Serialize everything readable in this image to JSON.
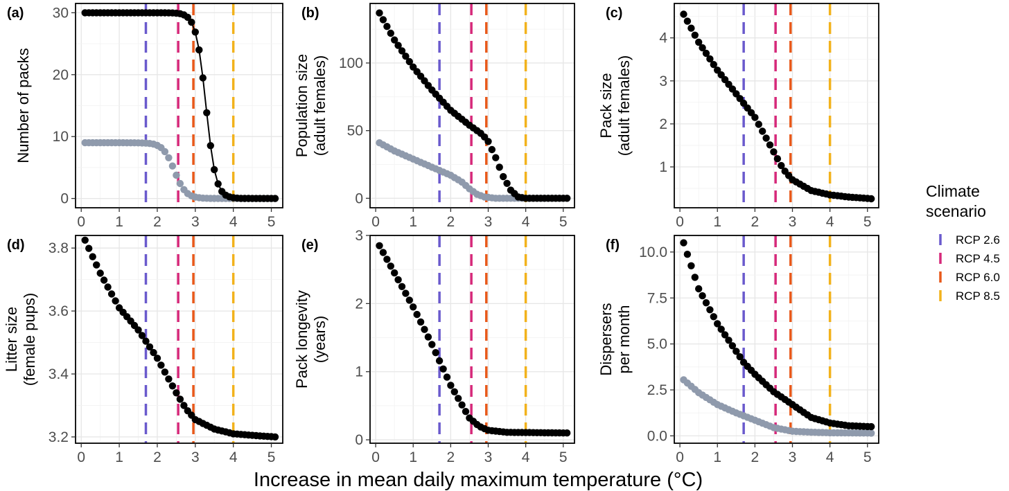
{
  "figure": {
    "xlabel": "Increase in mean daily maximum temperature (°C)"
  },
  "legend": {
    "title_lines": [
      "Climate",
      "scenario"
    ],
    "entries": [
      {
        "label": "RCP 2.6",
        "color": "#6a5acd",
        "x": 1.7
      },
      {
        "label": "RCP 4.5",
        "color": "#d6297a",
        "x": 2.55
      },
      {
        "label": "RCP 6.0",
        "color": "#e8591a",
        "x": 2.95
      },
      {
        "label": "RCP 8.5",
        "color": "#f2b21c",
        "x": 4.0
      }
    ]
  },
  "colors": {
    "black_series": "#000000",
    "grey_series": "#8f9aac",
    "grid": "#ebebeb"
  },
  "chart_data": [
    {
      "panel": "(a)",
      "type": "line",
      "ylabel_lines": [
        "Number of packs"
      ],
      "xlim": [
        -0.15,
        5.3
      ],
      "ylim": [
        -1.5,
        31.5
      ],
      "xticks": [
        0,
        1,
        2,
        3,
        4,
        5
      ],
      "yticks": [
        0,
        10,
        20,
        30
      ],
      "ytick_labels": [
        "0",
        "10",
        "20",
        "30"
      ],
      "series": [
        {
          "color": "black",
          "line": true,
          "kind": "logistic",
          "x0": 3.28,
          "s": 0.13,
          "hi": 30,
          "lo": 0
        },
        {
          "color": "grey",
          "line": false,
          "kind": "logistic",
          "x0": 2.45,
          "s": 0.15,
          "hi": 9,
          "lo": 0
        }
      ]
    },
    {
      "panel": "(b)",
      "type": "line",
      "ylabel_lines": [
        "Population size",
        "(adult females)"
      ],
      "xlim": [
        -0.15,
        5.3
      ],
      "ylim": [
        -7,
        144
      ],
      "xticks": [
        0,
        1,
        2,
        3,
        4,
        5
      ],
      "yticks": [
        0,
        50,
        100
      ],
      "ytick_labels": [
        "0",
        "50",
        "100"
      ],
      "series": [
        {
          "color": "black",
          "line": false,
          "kind": "knots",
          "knots": [
            [
              0.1,
              137
            ],
            [
              0.5,
              117
            ],
            [
              1,
              97
            ],
            [
              1.5,
              80
            ],
            [
              1.7,
              74
            ],
            [
              2,
              65
            ],
            [
              2.5,
              54
            ],
            [
              2.85,
              47
            ],
            [
              3,
              42
            ],
            [
              3.2,
              30
            ],
            [
              3.4,
              16
            ],
            [
              3.6,
              6
            ],
            [
              3.8,
              1
            ],
            [
              4,
              0
            ],
            [
              5.1,
              0
            ]
          ]
        },
        {
          "color": "grey",
          "line": false,
          "kind": "knots",
          "knots": [
            [
              0.1,
              41
            ],
            [
              0.5,
              35
            ],
            [
              1,
              29
            ],
            [
              1.5,
              23
            ],
            [
              2,
              17
            ],
            [
              2.3,
              12
            ],
            [
              2.5,
              7
            ],
            [
              2.7,
              3
            ],
            [
              2.9,
              1
            ],
            [
              3.2,
              0
            ],
            [
              5.1,
              0
            ]
          ]
        }
      ]
    },
    {
      "panel": "(c)",
      "type": "line",
      "ylabel_lines": [
        "Pack size",
        "(adult females)"
      ],
      "xlim": [
        -0.15,
        5.3
      ],
      "ylim": [
        0.05,
        4.8
      ],
      "xticks": [
        0,
        1,
        2,
        3,
        4,
        5
      ],
      "yticks": [
        1,
        2,
        3,
        4
      ],
      "ytick_labels": [
        "1",
        "2",
        "3",
        "4"
      ],
      "series": [
        {
          "color": "black",
          "line": false,
          "kind": "knots",
          "knots": [
            [
              0.1,
              4.55
            ],
            [
              0.5,
              3.9
            ],
            [
              1,
              3.25
            ],
            [
              1.5,
              2.7
            ],
            [
              2,
              2.15
            ],
            [
              2.5,
              1.35
            ],
            [
              2.75,
              0.95
            ],
            [
              3,
              0.7
            ],
            [
              3.5,
              0.45
            ],
            [
              4,
              0.35
            ],
            [
              4.5,
              0.3
            ],
            [
              5.1,
              0.26
            ]
          ]
        }
      ]
    },
    {
      "panel": "(d)",
      "type": "line",
      "ylabel_lines": [
        "Litter size",
        "(female pups)"
      ],
      "xlim": [
        -0.15,
        5.3
      ],
      "ylim": [
        3.18,
        3.84
      ],
      "xticks": [
        0,
        1,
        2,
        3,
        4,
        5
      ],
      "yticks": [
        3.2,
        3.4,
        3.6,
        3.8
      ],
      "ytick_labels": [
        "3.2",
        "3.4",
        "3.6",
        "3.8"
      ],
      "series": [
        {
          "color": "black",
          "line": false,
          "kind": "knots",
          "knots": [
            [
              0.1,
              3.825
            ],
            [
              0.5,
              3.72
            ],
            [
              1,
              3.61
            ],
            [
              1.5,
              3.54
            ],
            [
              2,
              3.45
            ],
            [
              2.5,
              3.34
            ],
            [
              2.75,
              3.29
            ],
            [
              3,
              3.255
            ],
            [
              3.5,
              3.225
            ],
            [
              4,
              3.21
            ],
            [
              4.5,
              3.205
            ],
            [
              5.1,
              3.2
            ]
          ]
        }
      ]
    },
    {
      "panel": "(e)",
      "type": "line",
      "ylabel_lines": [
        "Pack longevity",
        "(years)"
      ],
      "xlim": [
        -0.15,
        5.3
      ],
      "ylim": [
        -0.05,
        3.0
      ],
      "xticks": [
        0,
        1,
        2,
        3,
        4,
        5
      ],
      "yticks": [
        0,
        1,
        2,
        3
      ],
      "ytick_labels": [
        "0",
        "1",
        "2",
        "3"
      ],
      "series": [
        {
          "color": "black",
          "line": false,
          "kind": "knots",
          "knots": [
            [
              0.1,
              2.85
            ],
            [
              0.5,
              2.45
            ],
            [
              1,
              1.95
            ],
            [
              1.5,
              1.4
            ],
            [
              2,
              0.8
            ],
            [
              2.5,
              0.32
            ],
            [
              2.75,
              0.2
            ],
            [
              3,
              0.14
            ],
            [
              3.5,
              0.11
            ],
            [
              5.1,
              0.1
            ]
          ]
        }
      ]
    },
    {
      "panel": "(f)",
      "type": "line",
      "ylabel_lines": [
        "Dispersers",
        "per month"
      ],
      "xlim": [
        -0.15,
        5.3
      ],
      "ylim": [
        -0.4,
        10.9
      ],
      "xticks": [
        0,
        1,
        2,
        3,
        4,
        5
      ],
      "yticks": [
        0,
        2.5,
        5,
        7.5,
        10
      ],
      "ytick_labels": [
        "0.0",
        "2.5",
        "5.0",
        "7.5",
        "10.0"
      ],
      "series": [
        {
          "color": "black",
          "line": false,
          "kind": "knots",
          "knots": [
            [
              0.1,
              10.5
            ],
            [
              0.5,
              8.0
            ],
            [
              1,
              6.1
            ],
            [
              1.5,
              4.6
            ],
            [
              1.7,
              4.0
            ],
            [
              2,
              3.35
            ],
            [
              2.5,
              2.4
            ],
            [
              3,
              1.7
            ],
            [
              3.5,
              1.0
            ],
            [
              4,
              0.7
            ],
            [
              4.5,
              0.55
            ],
            [
              5.1,
              0.5
            ]
          ]
        },
        {
          "color": "grey",
          "line": false,
          "kind": "knots",
          "knots": [
            [
              0.1,
              3.05
            ],
            [
              0.5,
              2.35
            ],
            [
              1,
              1.7
            ],
            [
              1.5,
              1.25
            ],
            [
              2,
              0.85
            ],
            [
              2.5,
              0.45
            ],
            [
              3,
              0.25
            ],
            [
              3.5,
              0.2
            ],
            [
              4,
              0.17
            ],
            [
              5.1,
              0.15
            ]
          ]
        }
      ]
    }
  ]
}
